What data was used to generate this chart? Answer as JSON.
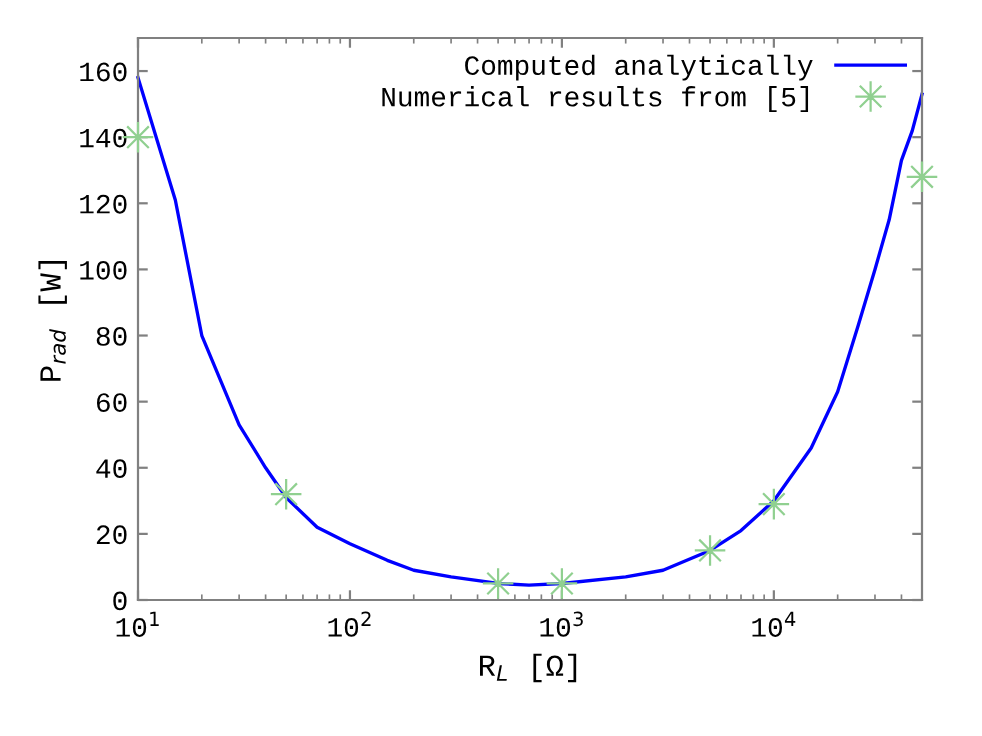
{
  "chart_data": {
    "type": "line",
    "xlabel": "R$_{L}$ [Ω]",
    "ylabel": "P$_{rad}$ [W]",
    "log": "x",
    "xlim": [
      10,
      50000
    ],
    "ylim": [
      0,
      170
    ],
    "xticks": [
      {
        "value": 10,
        "label": "10$^{1}$"
      },
      {
        "value": 100,
        "label": "10$^{2}$"
      },
      {
        "value": 1000,
        "label": "10$^{3}$"
      },
      {
        "value": 10000,
        "label": "10$^{4}$"
      }
    ],
    "yticks": [
      0,
      20,
      40,
      60,
      80,
      100,
      120,
      140,
      160
    ],
    "grid": false,
    "legend": "top right",
    "series": [
      {
        "name": "Computed analytically",
        "color": "#0000ff",
        "marker": "none",
        "line_style": "solid",
        "x": [
          10,
          15,
          20,
          30,
          40,
          50,
          70,
          100,
          150,
          200,
          300,
          500,
          700,
          1000,
          2000,
          3000,
          5000,
          7000,
          10000,
          15000,
          20000,
          25000,
          30000,
          35000,
          40000,
          45000,
          50000
        ],
        "values": [
          158,
          121,
          80,
          53,
          40,
          31,
          22,
          17,
          12,
          9,
          7,
          5,
          4.5,
          5,
          7,
          9,
          15,
          21,
          30,
          46,
          63,
          83,
          100,
          115,
          133,
          142,
          153
        ]
      },
      {
        "name": "Numerical results from [5]",
        "type": "scatter",
        "color": "#90d090",
        "marker": "star",
        "x": [
          10,
          50,
          500,
          1000,
          5000,
          10000,
          50000
        ],
        "values": [
          140,
          32,
          5,
          5,
          15,
          29,
          128
        ]
      }
    ]
  }
}
